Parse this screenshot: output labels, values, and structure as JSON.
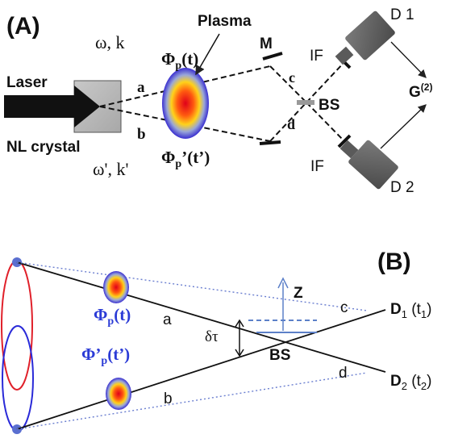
{
  "panelA": {
    "label": "(A)",
    "plasma_label": "Plasma",
    "laser_label": "Laser",
    "crystal_label": "NL crystal",
    "omega_k_top": "ω, k",
    "omega_k_bottom": "ω', k'",
    "phi_top": "Φp(t)",
    "phi_bottom": "Φp'(t')",
    "beam_a": "a",
    "beam_b": "b",
    "beam_c": "c",
    "beam_d": "d",
    "mirror": "M",
    "beamsplitter": "BS",
    "filter_top": "IF",
    "filter_bottom": "IF",
    "detector_1": "D 1",
    "detector_2": "D 2",
    "correlation": "G(2)"
  },
  "panelB": {
    "label": "(B)",
    "phi_top": "Φp(t)",
    "phi_bottom": "Φ'p(t')",
    "beam_a": "a",
    "beam_b": "b",
    "beam_c": "c",
    "beam_d": "d",
    "axis_z": "Z",
    "delay": "δτ",
    "beamsplitter": "BS",
    "detector_1": "D1 (t1)",
    "detector_2": "D2 (t2)"
  },
  "colors": {
    "text_blue": "#2b3bd6",
    "red_ellipse": "#e0202a",
    "blue_ellipse": "#2a2ad8",
    "dotted_blue": "#6b7fd0",
    "bs_blue": "#5c80c8"
  }
}
